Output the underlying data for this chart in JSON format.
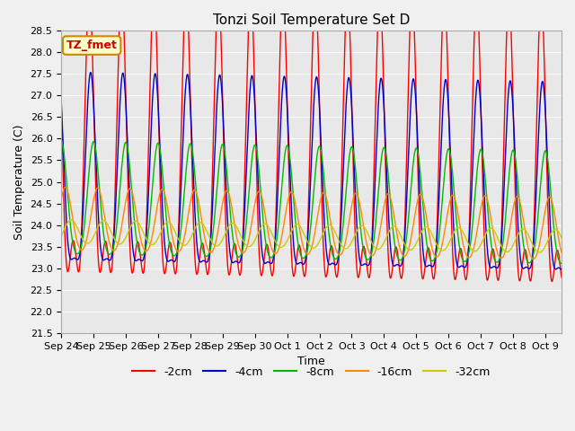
{
  "title": "Tonzi Soil Temperature Set D",
  "xlabel": "Time",
  "ylabel": "Soil Temperature (C)",
  "ylim": [
    21.5,
    28.5
  ],
  "annotation_text": "TZ_fmet",
  "annotation_bg": "#ffffcc",
  "annotation_border": "#cc8800",
  "annotation_text_color": "#cc0000",
  "x_tick_labels": [
    "Sep 24",
    "Sep 25",
    "Sep 26",
    "Sep 27",
    "Sep 28",
    "Sep 29",
    "Sep 30",
    "Oct 1",
    "Oct 2",
    "Oct 3",
    "Oct 4",
    "Oct 5",
    "Oct 6",
    "Oct 7",
    "Oct 8",
    "Oct 9"
  ],
  "bg_color": "#e8e8e8",
  "fig_bg_color": "#f0f0f0",
  "n_days": 15.5,
  "depths": [
    {
      "amp": 2.9,
      "mean": 25.1,
      "phase_days": 0.0,
      "color": "#ff0000",
      "label": "-2cm",
      "harmonic2": 0.5
    },
    {
      "amp": 2.15,
      "mean": 24.75,
      "phase_days": 0.04,
      "color": "#0000cc",
      "label": "-4cm",
      "harmonic2": 0.3
    },
    {
      "amp": 1.3,
      "mean": 24.45,
      "phase_days": 0.13,
      "color": "#00bb00",
      "label": "-8cm",
      "harmonic2": 0.15
    },
    {
      "amp": 0.72,
      "mean": 24.1,
      "phase_days": 0.26,
      "color": "#ff8800",
      "label": "-16cm",
      "harmonic2": 0.08
    },
    {
      "amp": 0.27,
      "mean": 23.85,
      "phase_days": 0.44,
      "color": "#cccc00",
      "label": "-32cm",
      "harmonic2": 0.03
    }
  ],
  "trend_slope": -0.015,
  "peak_time": 0.62
}
